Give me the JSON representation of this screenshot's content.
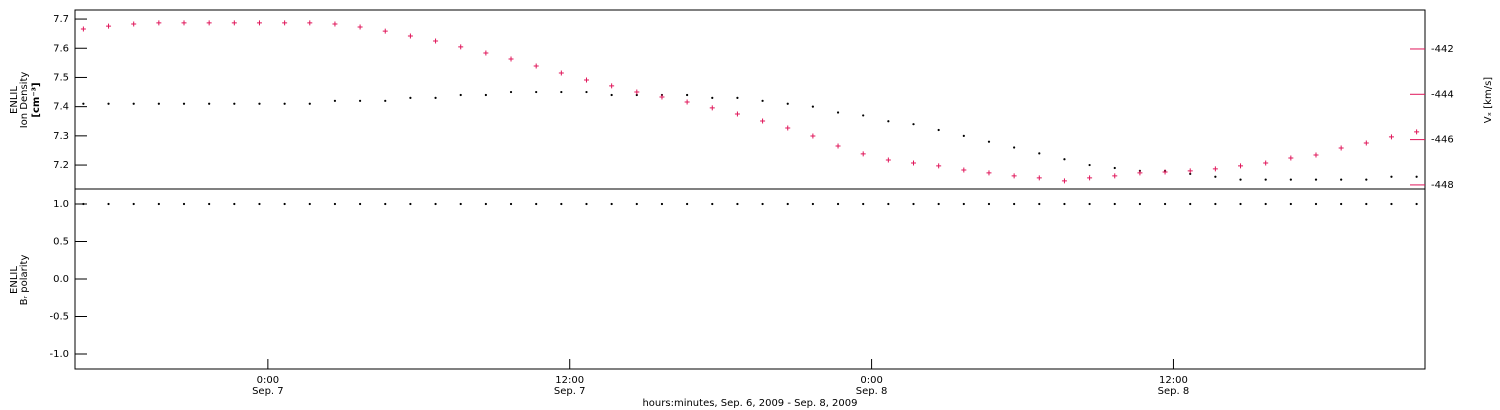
{
  "chart_data": [
    {
      "type": "scatter",
      "ylabel": [
        "ENLIL",
        "Ion Density",
        "[cm⁻³]"
      ],
      "y2label": "Vₓ [km/s]",
      "x": [
        "2009-09-06 16:40",
        "2009-09-06 17:40",
        "2009-09-06 18:40",
        "2009-09-06 19:40",
        "2009-09-06 20:40",
        "2009-09-06 21:40",
        "2009-09-06 22:40",
        "2009-09-06 23:40",
        "2009-09-07 00:40",
        "2009-09-07 01:40",
        "2009-09-07 02:40",
        "2009-09-07 03:40",
        "2009-09-07 04:40",
        "2009-09-07 05:40",
        "2009-09-07 06:40",
        "2009-09-07 07:40",
        "2009-09-07 08:40",
        "2009-09-07 09:40",
        "2009-09-07 10:40",
        "2009-09-07 11:40",
        "2009-09-07 12:40",
        "2009-09-07 13:40",
        "2009-09-07 14:40",
        "2009-09-07 15:40",
        "2009-09-07 16:40",
        "2009-09-07 17:40",
        "2009-09-07 18:40",
        "2009-09-07 19:40",
        "2009-09-07 20:40",
        "2009-09-07 21:40",
        "2009-09-07 22:40",
        "2009-09-07 23:40",
        "2009-09-08 00:40",
        "2009-09-08 01:40",
        "2009-09-08 02:40",
        "2009-09-08 03:40",
        "2009-09-08 04:40",
        "2009-09-08 05:40",
        "2009-09-08 06:40",
        "2009-09-08 07:40",
        "2009-09-08 08:40",
        "2009-09-08 09:40",
        "2009-09-08 10:40",
        "2009-09-08 11:40",
        "2009-09-08 12:40",
        "2009-09-08 13:40",
        "2009-09-08 14:40",
        "2009-09-08 15:40",
        "2009-09-08 16:40",
        "2009-09-08 17:40",
        "2009-09-08 18:40",
        "2009-09-08 19:40",
        "2009-09-08 20:40",
        "2009-09-08 21:40"
      ],
      "xlim": [
        "2009-09-06 16:20",
        "2009-09-08 22:00"
      ],
      "ylim": [
        7.118,
        7.731
      ],
      "yticks": [
        7.2,
        7.3,
        7.4,
        7.5,
        7.6,
        7.7
      ],
      "y2lim": [
        -448.18,
        -440.28
      ],
      "y2ticks": [
        -448,
        -446,
        -444,
        -442
      ],
      "y2color": "#e0165a",
      "series": [
        {
          "name": "Ion Density",
          "color": "#000000",
          "marker": "dot",
          "values": [
            7.41,
            7.41,
            7.41,
            7.41,
            7.41,
            7.41,
            7.41,
            7.41,
            7.41,
            7.41,
            7.42,
            7.42,
            7.42,
            7.43,
            7.43,
            7.44,
            7.44,
            7.45,
            7.45,
            7.45,
            7.45,
            7.44,
            7.44,
            7.44,
            7.44,
            7.43,
            7.43,
            7.42,
            7.41,
            7.4,
            7.38,
            7.37,
            7.35,
            7.34,
            7.32,
            7.3,
            7.28,
            7.26,
            7.24,
            7.22,
            7.2,
            7.19,
            7.18,
            7.18,
            7.17,
            7.16,
            7.15,
            7.15,
            7.15,
            7.15,
            7.15,
            7.15,
            7.16,
            7.16
          ]
        },
        {
          "name": "Vx",
          "color": "#e0165a",
          "marker": "plus",
          "axis": "y2",
          "values": [
            -441.12,
            -440.99,
            -440.9,
            -440.85,
            -440.85,
            -440.85,
            -440.85,
            -440.85,
            -440.85,
            -440.85,
            -440.9,
            -441.03,
            -441.21,
            -441.43,
            -441.65,
            -441.91,
            -442.18,
            -442.44,
            -442.75,
            -443.06,
            -443.37,
            -443.63,
            -443.9,
            -444.12,
            -444.34,
            -444.6,
            -444.87,
            -445.18,
            -445.49,
            -445.84,
            -446.28,
            -446.63,
            -446.9,
            -447.03,
            -447.16,
            -447.34,
            -447.47,
            -447.6,
            -447.69,
            -447.82,
            -447.69,
            -447.6,
            -447.47,
            -447.43,
            -447.38,
            -447.29,
            -447.16,
            -447.03,
            -446.81,
            -446.68,
            -446.37,
            -446.15,
            -445.88,
            -445.66
          ]
        }
      ]
    },
    {
      "type": "scatter",
      "ylabel": [
        "ENLIL",
        "Bᵣ polarity"
      ],
      "xlabel": "hours:minutes, Sep.  6, 2009 - Sep.  8, 2009",
      "x": [
        "2009-09-06 16:40",
        "2009-09-06 17:40",
        "2009-09-06 18:40",
        "2009-09-06 19:40",
        "2009-09-06 20:40",
        "2009-09-06 21:40",
        "2009-09-06 22:40",
        "2009-09-06 23:40",
        "2009-09-07 00:40",
        "2009-09-07 01:40",
        "2009-09-07 02:40",
        "2009-09-07 03:40",
        "2009-09-07 04:40",
        "2009-09-07 05:40",
        "2009-09-07 06:40",
        "2009-09-07 07:40",
        "2009-09-07 08:40",
        "2009-09-07 09:40",
        "2009-09-07 10:40",
        "2009-09-07 11:40",
        "2009-09-07 12:40",
        "2009-09-07 13:40",
        "2009-09-07 14:40",
        "2009-09-07 15:40",
        "2009-09-07 16:40",
        "2009-09-07 17:40",
        "2009-09-07 18:40",
        "2009-09-07 19:40",
        "2009-09-07 20:40",
        "2009-09-07 21:40",
        "2009-09-07 22:40",
        "2009-09-07 23:40",
        "2009-09-08 00:40",
        "2009-09-08 01:40",
        "2009-09-08 02:40",
        "2009-09-08 03:40",
        "2009-09-08 04:40",
        "2009-09-08 05:40",
        "2009-09-08 06:40",
        "2009-09-08 07:40",
        "2009-09-08 08:40",
        "2009-09-08 09:40",
        "2009-09-08 10:40",
        "2009-09-08 11:40",
        "2009-09-08 12:40",
        "2009-09-08 13:40",
        "2009-09-08 14:40",
        "2009-09-08 15:40",
        "2009-09-08 16:40",
        "2009-09-08 17:40",
        "2009-09-08 18:40",
        "2009-09-08 19:40",
        "2009-09-08 20:40",
        "2009-09-08 21:40"
      ],
      "xlim": [
        "2009-09-06 16:20",
        "2009-09-08 22:00"
      ],
      "xticks": [
        {
          "value": "2009-09-07 00:00",
          "label": [
            "0:00",
            "Sep. 7"
          ]
        },
        {
          "value": "2009-09-07 12:00",
          "label": [
            "12:00",
            "Sep. 7"
          ]
        },
        {
          "value": "2009-09-08 00:00",
          "label": [
            "0:00",
            "Sep. 8"
          ]
        },
        {
          "value": "2009-09-08 12:00",
          "label": [
            "12:00",
            "Sep. 8"
          ]
        }
      ],
      "ylim": [
        -1.2,
        1.2
      ],
      "yticks": [
        {
          "value": -1,
          "label": "-1.0"
        },
        {
          "value": -0.5,
          "label": "-0.5"
        },
        {
          "value": 0,
          "label": "0.0"
        },
        {
          "value": 0.5,
          "label": "0.5"
        },
        {
          "value": 1,
          "label": "1.0"
        }
      ],
      "series": [
        {
          "name": "Br polarity",
          "color": "#000000",
          "marker": "dot",
          "values": [
            1,
            1,
            1,
            1,
            1,
            1,
            1,
            1,
            1,
            1,
            1,
            1,
            1,
            1,
            1,
            1,
            1,
            1,
            1,
            1,
            1,
            1,
            1,
            1,
            1,
            1,
            1,
            1,
            1,
            1,
            1,
            1,
            1,
            1,
            1,
            1,
            1,
            1,
            1,
            1,
            1,
            1,
            1,
            1,
            1,
            1,
            1,
            1,
            1,
            1,
            1,
            1,
            1,
            1
          ]
        }
      ]
    }
  ]
}
